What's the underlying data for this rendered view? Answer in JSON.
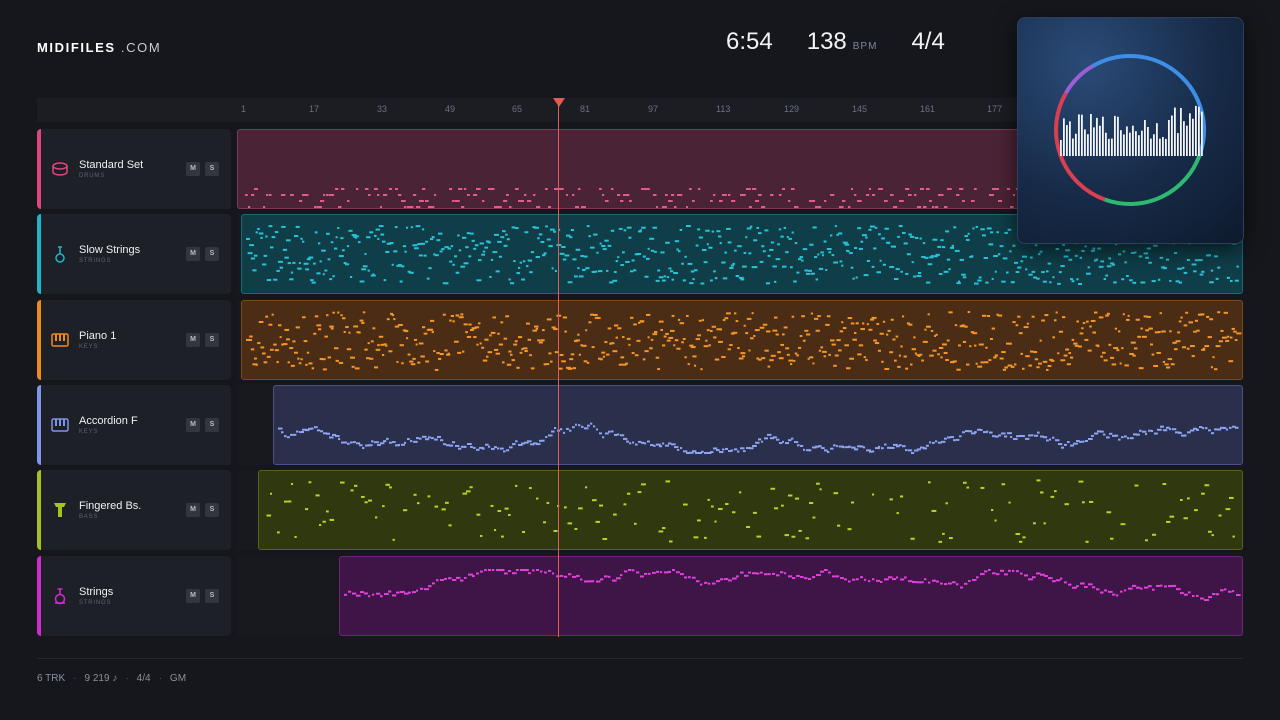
{
  "brand": {
    "name_bold": "MIDIFILES",
    "name_light": ".COM"
  },
  "transport": {
    "time": "6:54",
    "tempo": "138",
    "tempo_unit": "BPM",
    "meter": "4/4"
  },
  "ruler": {
    "ticks": [
      "1",
      "17",
      "33",
      "49",
      "65",
      "81",
      "97",
      "113",
      "129",
      "145",
      "161",
      "177"
    ]
  },
  "tracks": [
    {
      "name": "Standard Set",
      "category": "DRUMS",
      "icon": "drum-icon",
      "color": "#e0457e",
      "mute": "M",
      "solo": "S"
    },
    {
      "name": "Slow Strings",
      "category": "STRINGS",
      "icon": "violin-icon",
      "color": "#1fb5c8",
      "mute": "M",
      "solo": "S"
    },
    {
      "name": "Piano 1",
      "category": "KEYS",
      "icon": "piano-icon",
      "color": "#f08a1c",
      "mute": "M",
      "solo": "S"
    },
    {
      "name": "Accordion F",
      "category": "KEYS",
      "icon": "keys-icon",
      "color": "#7f95e8",
      "mute": "M",
      "solo": "S"
    },
    {
      "name": "Fingered Bs.",
      "category": "BASS",
      "icon": "bass-icon",
      "color": "#a6c21e",
      "mute": "M",
      "solo": "S"
    },
    {
      "name": "Strings",
      "category": "STRINGS",
      "icon": "strings-icon",
      "color": "#d12bd0",
      "mute": "M",
      "solo": "S"
    }
  ],
  "footer": {
    "tracks": "6 TRK",
    "notes": "9 219 ♪",
    "meter": "4/4",
    "standard": "GM"
  }
}
